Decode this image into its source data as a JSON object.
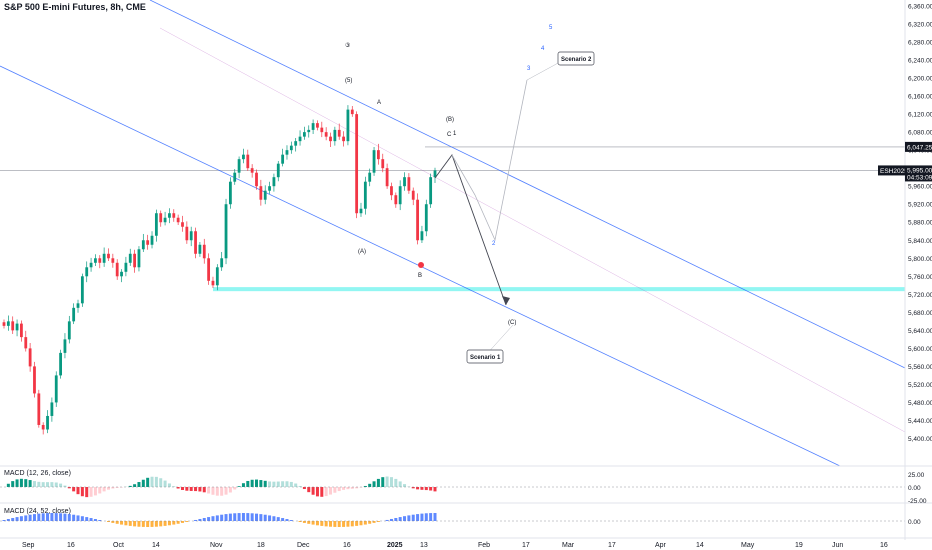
{
  "chart_data": {
    "type": "candlestick",
    "title": "S&P 500 E-mini Futures, 8h, CME",
    "y_axis": {
      "min": 5360,
      "max": 6360,
      "ticks": [
        "6,360.00",
        "6,320.00",
        "6,280.00",
        "6,240.00",
        "6,200.00",
        "6,160.00",
        "6,120.00",
        "6,080.00",
        "6,040.00",
        "6,000.00",
        "5,960.00",
        "5,920.00",
        "5,880.00",
        "5,840.00",
        "5,800.00",
        "5,760.00",
        "5,720.00",
        "5,680.00",
        "5,640.00",
        "5,600.00",
        "5,560.00",
        "5,520.00",
        "5,480.00",
        "5,440.00",
        "5,400.00"
      ]
    },
    "x_axis": {
      "ticks": [
        "Sep",
        "16",
        "Oct",
        "14",
        "Nov",
        "18",
        "Dec",
        "16",
        "2025",
        "13",
        "Feb",
        "17",
        "Mar",
        "17",
        "Apr",
        "14",
        "May",
        "19",
        "Jun",
        "16"
      ]
    },
    "price_tags": {
      "level": "6,047.25",
      "symbol": "ESH2025",
      "last": "5,995.00",
      "countdown": "04:53:09"
    },
    "support_zone": [
      5727,
      5736
    ],
    "wave_labels": [
      "③",
      "(5)",
      "A",
      "(B)",
      "C",
      "1",
      "(A)",
      "B",
      "2",
      "3",
      "4",
      "5",
      "(C)"
    ],
    "callouts": [
      "Scenario 1",
      "Scenario 2"
    ],
    "indicators": [
      {
        "name": "MACD (12, 26, close)",
        "ticks": [
          "25.00",
          "0.00",
          "-25.00"
        ]
      },
      {
        "name": "MACD (24, 52, close)",
        "ticks": [
          "0.00"
        ]
      }
    ],
    "series": [
      {
        "name": "",
        "x": [
          "Aug 26",
          "Aug 27",
          "Aug 28",
          "Aug 29",
          "Aug 30",
          "Sep 2",
          "Sep 3",
          "Sep 4",
          "Sep 5",
          "Sep 6",
          "Sep 9",
          "Sep 10",
          "Sep 11",
          "Sep 12",
          "Sep 13",
          "Sep 16",
          "Sep 17",
          "Sep 18",
          "Sep 19",
          "Sep 20",
          "Sep 23",
          "Sep 24",
          "Sep 25",
          "Sep 26",
          "Sep 27",
          "Sep 30",
          "Oct 1",
          "Oct 2",
          "Oct 3",
          "Oct 4",
          "Oct 7",
          "Oct 8",
          "Oct 9",
          "Oct 10",
          "Oct 11",
          "Oct 14",
          "Oct 15",
          "Oct 16",
          "Oct 17",
          "Oct 18",
          "Oct 21",
          "Oct 22",
          "Oct 23",
          "Oct 24",
          "Oct 25",
          "Oct 28",
          "Oct 29",
          "Oct 30",
          "Oct 31",
          "Nov 1",
          "Nov 4",
          "Nov 5",
          "Nov 6",
          "Nov 7",
          "Nov 8",
          "Nov 11",
          "Nov 12",
          "Nov 13",
          "Nov 14",
          "Nov 15",
          "Nov 18",
          "Nov 19",
          "Nov 20",
          "Nov 21",
          "Nov 22",
          "Nov 25",
          "Nov 26",
          "Nov 27",
          "Nov 29",
          "Dec 2",
          "Dec 3",
          "Dec 4",
          "Dec 5",
          "Dec 6",
          "Dec 9",
          "Dec 10",
          "Dec 11",
          "Dec 12",
          "Dec 13",
          "Dec 16",
          "Dec 17",
          "Dec 18",
          "Dec 19",
          "Dec 20",
          "Dec 23",
          "Dec 24",
          "Dec 26",
          "Dec 27",
          "Dec 30",
          "Dec 31",
          "Jan 2",
          "Jan 3",
          "Jan 6",
          "Jan 7",
          "Jan 8",
          "Jan 10",
          "Jan 13",
          "Jan 14",
          "Jan 15",
          "Jan 16"
        ],
        "close": [
          5650,
          5660,
          5640,
          5655,
          5625,
          5600,
          5560,
          5500,
          5430,
          5420,
          5450,
          5480,
          5540,
          5590,
          5620,
          5660,
          5690,
          5700,
          5760,
          5780,
          5790,
          5800,
          5790,
          5810,
          5800,
          5790,
          5760,
          5770,
          5790,
          5810,
          5780,
          5820,
          5840,
          5830,
          5850,
          5900,
          5880,
          5890,
          5900,
          5890,
          5880,
          5870,
          5840,
          5860,
          5810,
          5830,
          5800,
          5750,
          5740,
          5780,
          5800,
          5920,
          5970,
          5990,
          6020,
          6030,
          6000,
          5990,
          5960,
          5930,
          5950,
          5960,
          5980,
          6010,
          6030,
          6040,
          6050,
          6060,
          6070,
          6080,
          6085,
          6100,
          6090,
          6080,
          6070,
          6060,
          6085,
          6070,
          6060,
          6130,
          6120,
          5900,
          5910,
          5970,
          5990,
          6040,
          6020,
          6000,
          5960,
          5940,
          5920,
          5960,
          5980,
          5950,
          5930,
          5840,
          5860,
          5920,
          5980,
          5995
        ]
      }
    ],
    "projections": {
      "scenario_1_path": [
        [
          "Jan 16",
          5995
        ],
        [
          "Jan 20",
          6050
        ],
        [
          "Jan 30",
          5730
        ]
      ],
      "scenario_2_path": [
        [
          "Jan 16",
          5995
        ],
        [
          "Jan 20",
          6050
        ],
        [
          "Jan 26",
          5960
        ],
        [
          "Jan 30",
          5870
        ],
        [
          "Feb 8",
          6200
        ]
      ]
    }
  }
}
